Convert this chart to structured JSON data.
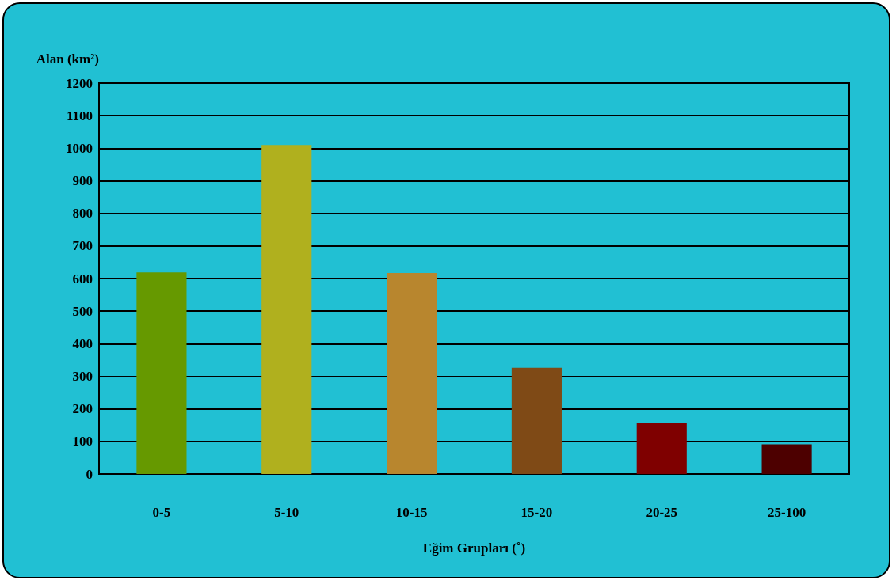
{
  "chart_data": {
    "type": "bar",
    "xlabel": "Eğim Grupları (˚)",
    "ylabel": "Alan (km²)",
    "categories": [
      "0-5",
      "5-10",
      "10-15",
      "15-20",
      "20-25",
      "25-100"
    ],
    "values": [
      619,
      1010,
      617,
      326,
      158,
      91
    ],
    "colors": [
      "#669900",
      "#b0b01e",
      "#b8862e",
      "#7f4a16",
      "#7f0000",
      "#4d0000"
    ],
    "ylim": [
      0,
      1200
    ],
    "yticks": [
      0,
      100,
      200,
      300,
      400,
      500,
      600,
      700,
      800,
      900,
      1000,
      1100,
      1200
    ],
    "grid": "y"
  }
}
